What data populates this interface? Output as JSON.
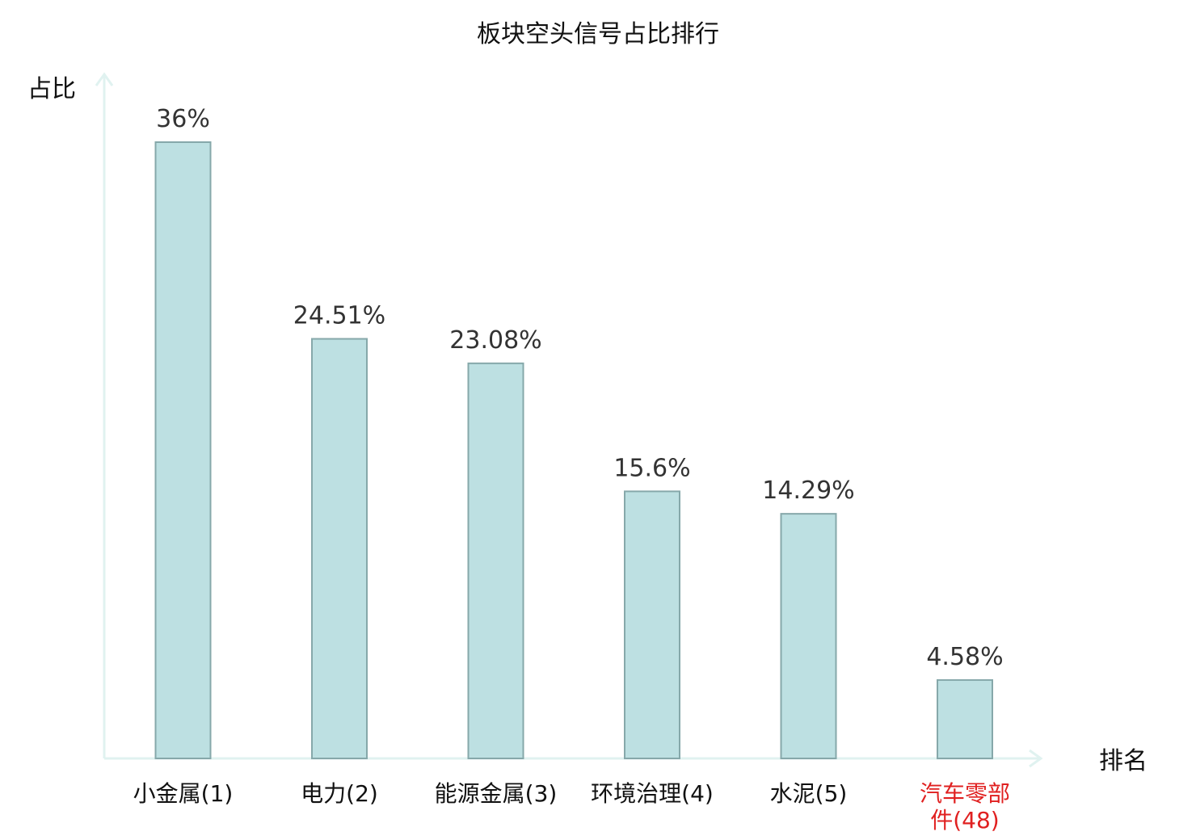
{
  "chart_data": {
    "type": "bar",
    "title": "板块空头信号占比排行",
    "ylabel": "占比",
    "xlabel": "排名",
    "ylim": [
      0,
      40
    ],
    "categories": [
      {
        "name_lines": [
          "小金属"
        ],
        "rank": "(1)",
        "highlight": false
      },
      {
        "name_lines": [
          "电力"
        ],
        "rank": "(2)",
        "highlight": false
      },
      {
        "name_lines": [
          "能源金属"
        ],
        "rank": "(3)",
        "highlight": false
      },
      {
        "name_lines": [
          "环境治理"
        ],
        "rank": "(4)",
        "highlight": false
      },
      {
        "name_lines": [
          "水泥"
        ],
        "rank": "(5)",
        "highlight": false
      },
      {
        "name_lines": [
          "汽车零部",
          "件"
        ],
        "rank": "(48)",
        "highlight": true
      }
    ],
    "values": [
      36,
      24.51,
      23.08,
      15.6,
      14.29,
      4.58
    ],
    "value_labels": [
      "36%",
      "24.51%",
      "23.08%",
      "15.6%",
      "14.29%",
      "4.58%"
    ],
    "colors": {
      "bar_fill": "#bde0e2",
      "bar_stroke": "#86a8aa",
      "axis": "#e0f2f0",
      "highlight_text": "#e02020"
    },
    "grid": false,
    "legend": "none"
  }
}
